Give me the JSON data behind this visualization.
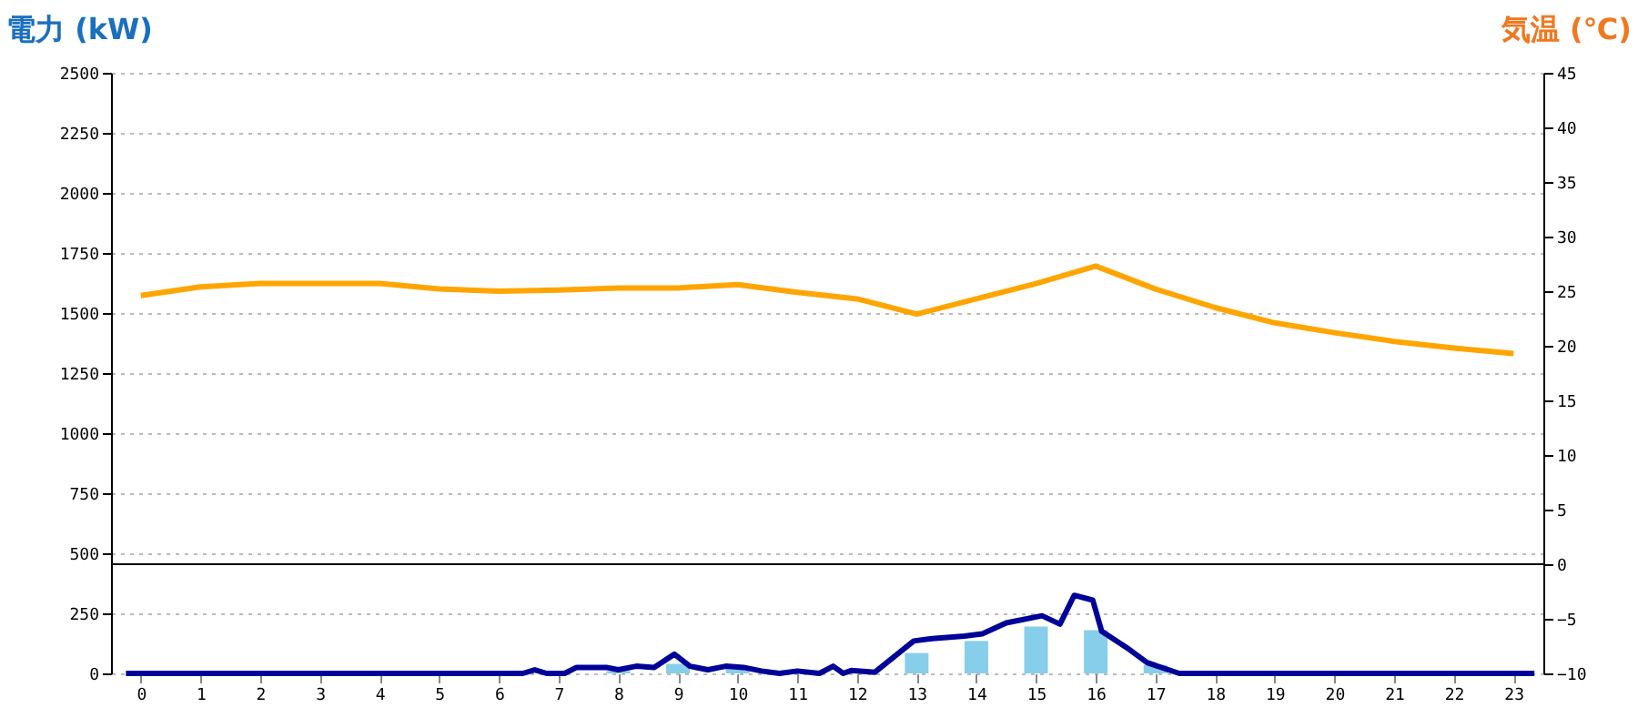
{
  "chart_data": {
    "type": "bar",
    "ylabel": "電力 (kW)",
    "y2label": "気温 (℃)",
    "x": [
      0,
      1,
      2,
      3,
      4,
      5,
      6,
      7,
      8,
      9,
      10,
      11,
      12,
      13,
      14,
      15,
      16,
      17,
      18,
      19,
      20,
      21,
      22,
      23
    ],
    "xlim": [
      -0.5,
      23.5
    ],
    "xticks": [
      0,
      1,
      2,
      3,
      4,
      5,
      6,
      7,
      8,
      9,
      10,
      11,
      12,
      13,
      14,
      15,
      16,
      17,
      18,
      19,
      20,
      21,
      22,
      23
    ],
    "ylim": [
      0,
      2500
    ],
    "yticks": [
      0,
      250,
      500,
      750,
      1000,
      1250,
      1500,
      1750,
      2000,
      2250,
      2500
    ],
    "y2lim": [
      -10,
      45
    ],
    "y2ticks": [
      -10,
      -5,
      0,
      5,
      10,
      15,
      20,
      25,
      30,
      35,
      40,
      45
    ],
    "grid": "y",
    "legend": false,
    "ref_lines": [
      {
        "axis": "y2",
        "value": 0,
        "color": "#000000"
      }
    ],
    "series": [
      {
        "color": "#87ceeb",
        "values": [
          0,
          0,
          0,
          0,
          0,
          0,
          0,
          5,
          10,
          40,
          30,
          5,
          5,
          85,
          135,
          195,
          180,
          35,
          0,
          0,
          0,
          0,
          0,
          0
        ]
      },
      {
        "type": "line",
        "color": "#000099",
        "x": [
          -0.25,
          6.4,
          6.6,
          6.8,
          7.1,
          7.3,
          7.8,
          8.0,
          8.3,
          8.6,
          8.94,
          9.2,
          9.5,
          9.8,
          10.1,
          10.4,
          10.7,
          11.0,
          11.37,
          11.6,
          11.77,
          11.9,
          12.3,
          12.95,
          13.26,
          13.8,
          14.1,
          14.5,
          15.1,
          15.4,
          15.64,
          15.95,
          16.1,
          16.56,
          16.86,
          17.4,
          23.35
        ],
        "values": [
          0,
          0,
          15,
          0,
          0,
          25,
          25,
          15,
          30,
          25,
          80,
          30,
          15,
          30,
          25,
          10,
          0,
          10,
          0,
          30,
          0,
          12,
          5,
          135,
          145,
          155,
          165,
          210,
          240,
          205,
          325,
          305,
          175,
          100,
          45,
          0,
          0
        ]
      },
      {
        "type": "line",
        "axis": "y2",
        "color": "#ffa500",
        "values": [
          24.6,
          25.4,
          25.7,
          25.7,
          25.7,
          25.2,
          25.0,
          25.1,
          25.3,
          25.3,
          25.6,
          24.9,
          24.3,
          22.9,
          24.3,
          25.7,
          27.3,
          25.2,
          23.5,
          22.1,
          21.2,
          20.4,
          19.8,
          19.3
        ]
      }
    ]
  }
}
